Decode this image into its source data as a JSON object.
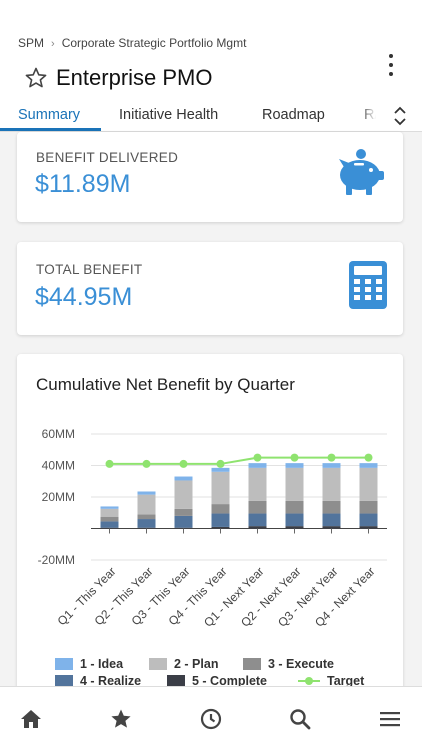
{
  "breadcrumb": {
    "root": "SPM",
    "separator": "›",
    "current": "Corporate Strategic Portfolio Mgmt"
  },
  "header": {
    "title": "Enterprise PMO"
  },
  "tabs": [
    {
      "label": "Summary",
      "active": true
    },
    {
      "label": "Initiative Health",
      "active": false
    },
    {
      "label": "Roadmap",
      "active": false
    },
    {
      "label": "R/",
      "active": false
    }
  ],
  "kpis": {
    "benefit_delivered": {
      "label": "BENEFIT DELIVERED",
      "value": "$11.89M",
      "icon": "piggy-bank-icon"
    },
    "total_benefit": {
      "label": "TOTAL BENEFIT",
      "value": "$44.95M",
      "icon": "calculator-icon"
    }
  },
  "colors": {
    "accent": "#1a73b8",
    "value_blue": "#3a8fd6",
    "target_line": "#8fe36f"
  },
  "chart_data": {
    "type": "bar",
    "title": "Cumulative Net Benefit by Quarter",
    "categories": [
      "Q1 - This Year",
      "Q2 - This Year",
      "Q3 - This Year",
      "Q4 - This Year",
      "Q1 - Next Year",
      "Q2 - Next Year",
      "Q3 - Next Year",
      "Q4 - Next Year"
    ],
    "y_ticks": [
      "60MM",
      "40MM",
      "20MM",
      "",
      "-20MM"
    ],
    "ylim": [
      -20,
      60
    ],
    "stacked": true,
    "series": [
      {
        "name": "5 - Complete",
        "color": "#3b3e47",
        "values": [
          0.5,
          0.5,
          0.5,
          1,
          1.5,
          1.5,
          1.5,
          1.5
        ]
      },
      {
        "name": "4 - Realize",
        "color": "#52749c",
        "values": [
          4,
          5.5,
          7.5,
          8.5,
          8,
          8,
          8,
          8
        ]
      },
      {
        "name": "3 - Execute",
        "color": "#8e8e8e",
        "values": [
          3,
          3,
          4.5,
          6,
          8,
          8,
          8,
          8
        ]
      },
      {
        "name": "2 - Plan",
        "color": "#bdbdbd",
        "values": [
          5,
          12.5,
          18,
          20.5,
          21,
          21,
          21,
          21
        ]
      },
      {
        "name": "1 - Idea",
        "color": "#7fb3ea",
        "values": [
          1.5,
          2,
          2.5,
          2.5,
          3,
          3,
          3,
          3
        ]
      }
    ],
    "target": {
      "name": "Target",
      "color": "#8fe36f",
      "values": [
        41,
        41,
        41,
        41,
        45,
        45,
        45,
        45
      ]
    },
    "legend": [
      "1 - Idea",
      "2 - Plan",
      "3 - Execute",
      "4 - Realize",
      "5 - Complete",
      "Target"
    ],
    "legend_position": "bottom"
  },
  "bottom_nav": [
    {
      "name": "home-icon"
    },
    {
      "name": "favorites-star-icon"
    },
    {
      "name": "recent-clock-icon"
    },
    {
      "name": "search-icon"
    },
    {
      "name": "menu-icon"
    }
  ]
}
